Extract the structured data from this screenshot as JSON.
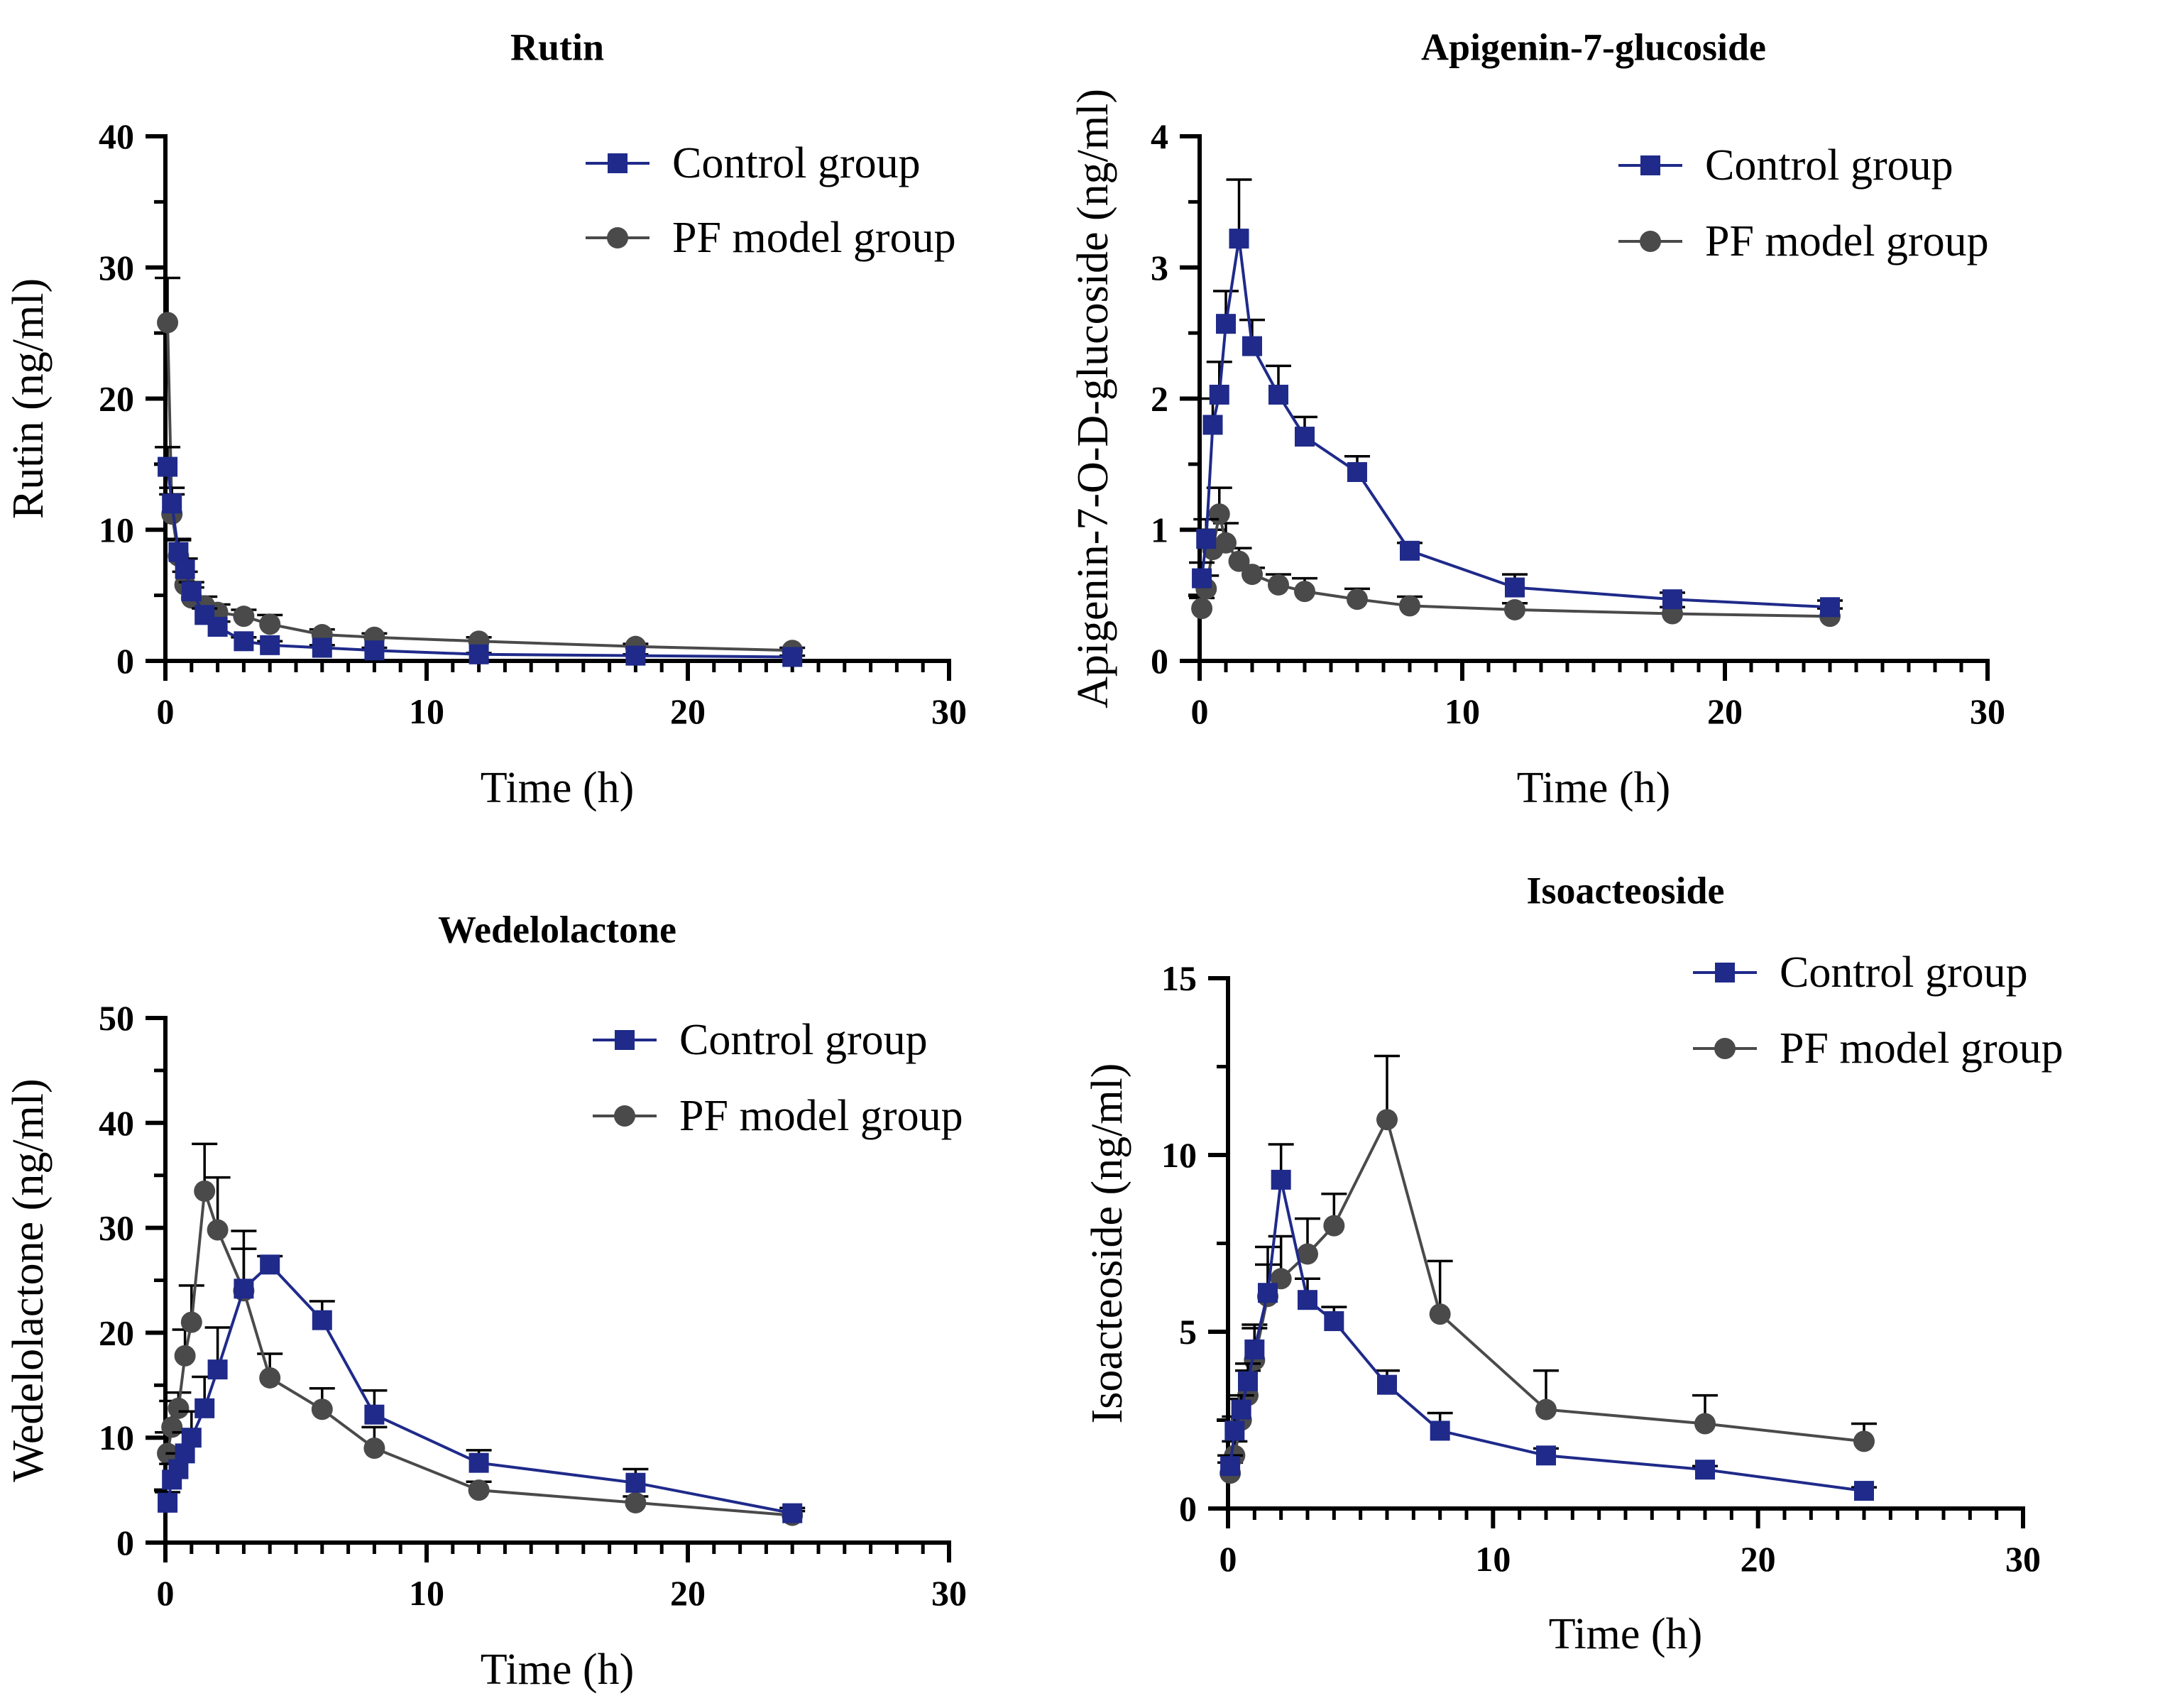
{
  "colors": {
    "control": "#1f2a8a",
    "pf": "#4a4a4a",
    "axis": "#000000"
  },
  "series_names": [
    "Control group",
    "PF model group"
  ],
  "chart_data": [
    {
      "type": "line",
      "title": "Rutin",
      "xlabel": "Time (h)",
      "ylabel": "Rutin (ng/ml)",
      "xlim": [
        0,
        30
      ],
      "ylim": [
        0,
        40
      ],
      "xticks": [
        0,
        10,
        20,
        30
      ],
      "yticks": [
        0,
        10,
        20,
        30,
        40
      ],
      "xtick_labels": [
        "0",
        "10",
        "20",
        "30"
      ],
      "ytick_labels": [
        "0",
        "10",
        "20",
        "30",
        "40"
      ],
      "legend": [
        "Control group",
        "PF model group"
      ],
      "series": [
        {
          "name": "Control group",
          "marker": "square",
          "x": [
            0.083,
            0.25,
            0.5,
            0.75,
            1,
            1.5,
            2,
            3,
            4,
            6,
            8,
            12,
            18,
            24
          ],
          "y": [
            14.8,
            12.0,
            8.3,
            7.0,
            5.3,
            3.5,
            2.6,
            1.5,
            1.2,
            1.0,
            0.8,
            0.5,
            0.4,
            0.3
          ],
          "err": [
            1.5,
            1.2,
            1.0,
            0.8,
            0.7,
            0.5,
            0.4,
            0.3,
            0.3,
            0.2,
            0.2,
            0.1,
            0.1,
            0.1
          ]
        },
        {
          "name": "PF model group",
          "marker": "circle",
          "x": [
            0.083,
            0.25,
            0.5,
            0.75,
            1,
            1.5,
            2,
            3,
            4,
            6,
            8,
            12,
            18,
            24
          ],
          "y": [
            25.8,
            11.2,
            8.0,
            5.8,
            4.8,
            4.2,
            3.7,
            3.4,
            2.8,
            2.0,
            1.8,
            1.5,
            1.1,
            0.8
          ],
          "err": [
            3.4,
            1.5,
            1.2,
            1.0,
            0.8,
            0.7,
            0.6,
            0.5,
            0.7,
            0.4,
            0.3,
            0.3,
            0.2,
            0.2
          ]
        }
      ]
    },
    {
      "type": "line",
      "title": "Apigenin-7-glucoside",
      "xlabel": "Time (h)",
      "ylabel": "Apigenin-7-O-D-glucoside (ng/ml)",
      "xlim": [
        0,
        30
      ],
      "ylim": [
        0,
        4
      ],
      "xticks": [
        0,
        10,
        20,
        30
      ],
      "yticks": [
        0,
        1,
        2,
        3,
        4
      ],
      "xtick_labels": [
        "0",
        "10",
        "20",
        "30"
      ],
      "ytick_labels": [
        "0",
        "1",
        "2",
        "3",
        "4"
      ],
      "legend": [
        "Control group",
        "PF model group"
      ],
      "series": [
        {
          "name": "Control group",
          "marker": "square",
          "x": [
            0.083,
            0.25,
            0.5,
            0.75,
            1,
            1.5,
            2,
            3,
            4,
            6,
            8,
            12,
            18,
            24
          ],
          "y": [
            0.63,
            0.93,
            1.8,
            2.03,
            2.57,
            3.22,
            2.4,
            2.03,
            1.71,
            1.44,
            0.84,
            0.56,
            0.47,
            0.41
          ],
          "err": [
            0.12,
            0.15,
            0.2,
            0.25,
            0.25,
            0.45,
            0.2,
            0.22,
            0.15,
            0.12,
            0.06,
            0.1,
            0.05,
            0.05
          ]
        },
        {
          "name": "PF model group",
          "marker": "circle",
          "x": [
            0.083,
            0.25,
            0.5,
            0.75,
            1,
            1.5,
            2,
            3,
            4,
            6,
            8,
            12,
            18,
            24
          ],
          "y": [
            0.4,
            0.55,
            0.85,
            1.12,
            0.9,
            0.76,
            0.66,
            0.58,
            0.53,
            0.47,
            0.42,
            0.39,
            0.36,
            0.34
          ],
          "err": [
            0.08,
            0.1,
            0.15,
            0.2,
            0.15,
            0.1,
            0.05,
            0.08,
            0.1,
            0.08,
            0.07,
            0.05,
            0.05,
            0.06
          ]
        }
      ]
    },
    {
      "type": "line",
      "title": "Wedelolactone",
      "xlabel": "Time (h)",
      "ylabel": "Wedelolactone (ng/ml)",
      "xlim": [
        0,
        30
      ],
      "ylim": [
        0,
        50
      ],
      "xticks": [
        0,
        10,
        20,
        30
      ],
      "yticks": [
        0,
        10,
        20,
        30,
        40,
        50
      ],
      "xtick_labels": [
        "0",
        "10",
        "20",
        "30"
      ],
      "ytick_labels": [
        "0",
        "10",
        "20",
        "30",
        "40",
        "50"
      ],
      "legend": [
        "Control group",
        "PF model group"
      ],
      "series": [
        {
          "name": "Control group",
          "marker": "square",
          "x": [
            0.083,
            0.25,
            0.5,
            0.75,
            1,
            1.5,
            2,
            3,
            4,
            6,
            8,
            12,
            18,
            24
          ],
          "y": [
            3.8,
            6.0,
            7.0,
            8.5,
            10.0,
            12.8,
            16.5,
            24.2,
            26.5,
            21.2,
            12.2,
            7.6,
            5.7,
            2.8
          ],
          "err": [
            1.0,
            1.5,
            1.5,
            2.0,
            2.5,
            3.0,
            4.0,
            5.5,
            0.8,
            1.8,
            2.3,
            1.2,
            1.3,
            0.5
          ]
        },
        {
          "name": "PF model group",
          "marker": "circle",
          "x": [
            0.083,
            0.25,
            0.5,
            0.75,
            1,
            1.5,
            2,
            3,
            4,
            6,
            8,
            12,
            18,
            24
          ],
          "y": [
            8.5,
            11.0,
            12.8,
            17.8,
            21.0,
            33.5,
            29.8,
            24.0,
            15.7,
            12.7,
            9.0,
            5.0,
            3.8,
            2.6
          ],
          "err": [
            2.0,
            2.5,
            1.5,
            2.5,
            3.5,
            4.5,
            5.0,
            4.0,
            2.3,
            2.0,
            2.0,
            0.8,
            0.6,
            0.4
          ]
        }
      ]
    },
    {
      "type": "line",
      "title": "Isoacteoside",
      "xlabel": "Time (h)",
      "ylabel": "Isoacteoside (ng/ml)",
      "xlim": [
        0,
        30
      ],
      "ylim": [
        0,
        15
      ],
      "xticks": [
        0,
        10,
        20,
        30
      ],
      "yticks": [
        0,
        5,
        10,
        15
      ],
      "xtick_labels": [
        "0",
        "10",
        "20",
        "30"
      ],
      "ytick_labels": [
        "0",
        "5",
        "10",
        "15"
      ],
      "legend": [
        "Control group",
        "PF model group"
      ],
      "series": [
        {
          "name": "Control group",
          "marker": "square",
          "x": [
            0.083,
            0.25,
            0.5,
            0.75,
            1,
            1.5,
            2,
            3,
            4,
            6,
            8,
            12,
            18,
            24
          ],
          "y": [
            1.2,
            2.2,
            2.8,
            3.6,
            4.5,
            6.1,
            9.3,
            5.9,
            5.3,
            3.5,
            2.2,
            1.5,
            1.1,
            0.5
          ],
          "err": [
            0.3,
            0.4,
            0.4,
            0.5,
            0.6,
            0.8,
            1.0,
            0.6,
            0.4,
            0.4,
            0.5,
            0.2,
            0.1,
            0.1
          ]
        },
        {
          "name": "PF model group",
          "marker": "circle",
          "x": [
            0.083,
            0.25,
            0.5,
            0.75,
            1,
            1.5,
            2,
            3,
            4,
            6,
            8,
            12,
            18,
            24
          ],
          "y": [
            1.0,
            1.5,
            2.5,
            3.2,
            4.2,
            6.0,
            6.5,
            7.2,
            8.0,
            11.0,
            5.5,
            2.8,
            2.4,
            1.9
          ],
          "err": [
            0.3,
            0.4,
            0.6,
            0.7,
            1.0,
            1.4,
            1.2,
            1.0,
            0.9,
            1.8,
            1.5,
            1.1,
            0.8,
            0.5
          ]
        }
      ]
    }
  ]
}
